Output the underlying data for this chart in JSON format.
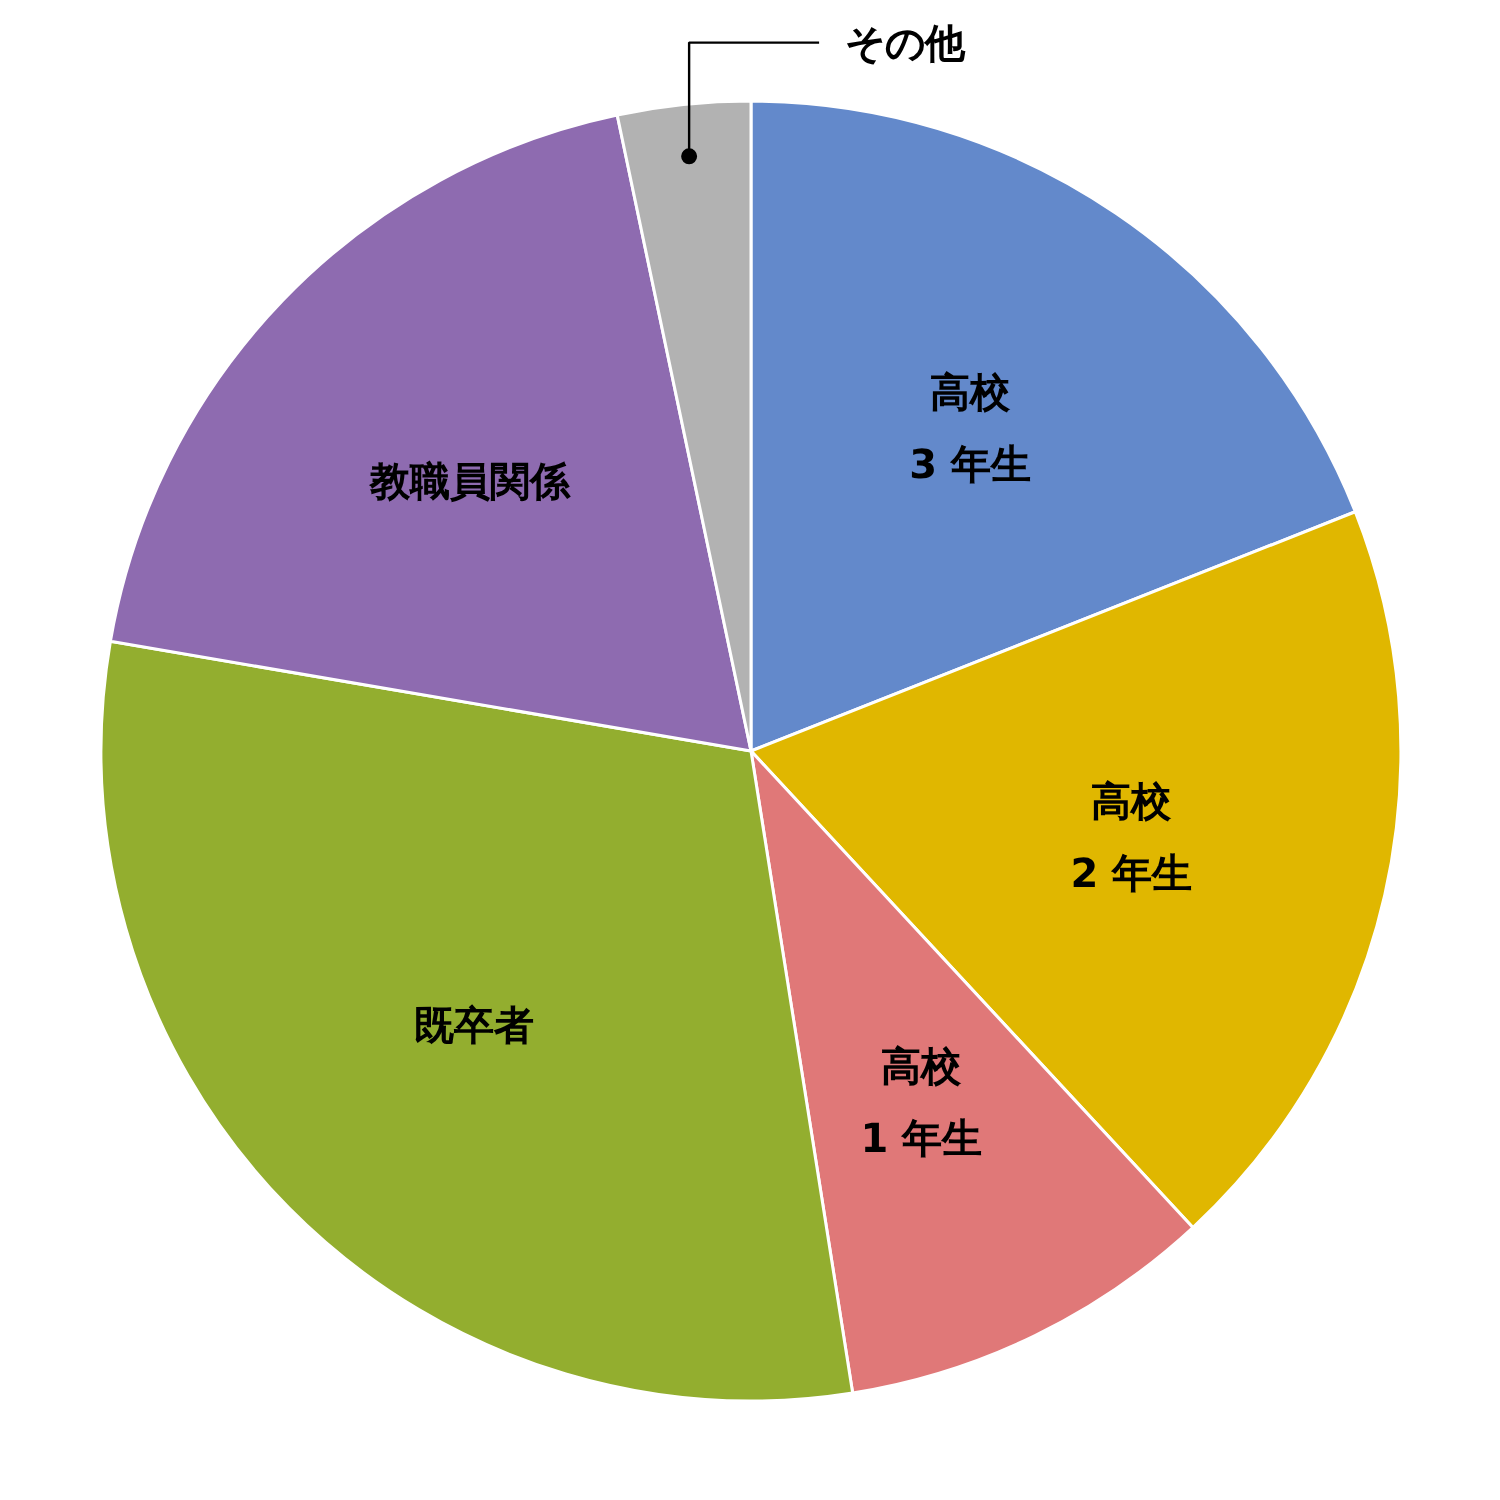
{
  "chart_data": {
    "type": "pie",
    "categories": [
      "高校\n3 年生",
      "高校\n2 年生",
      "高校\n1 年生",
      "既卒者",
      "教職員関係",
      "その他"
    ],
    "values": [
      19.0,
      19.1,
      9.4,
      30.2,
      19.0,
      3.3
    ],
    "colors": [
      "#6389cb",
      "#e0b700",
      "#e07878",
      "#93ae2f",
      "#8e6bb0",
      "#b2b2b2"
    ],
    "legend": false
  }
}
